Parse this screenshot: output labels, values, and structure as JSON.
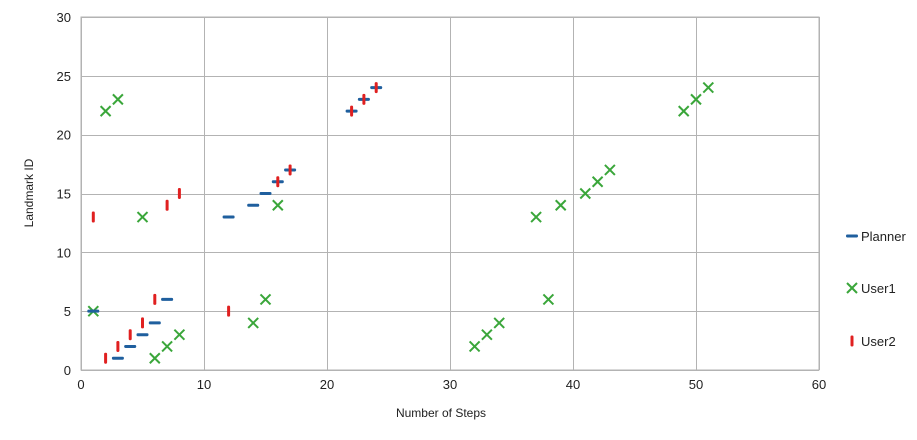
{
  "chart_data": {
    "type": "scatter",
    "title": "",
    "xlabel": "Number of Steps",
    "ylabel": "Landmark ID",
    "xlim": [
      0,
      60
    ],
    "ylim": [
      0,
      30
    ],
    "xticks": [
      0,
      10,
      20,
      30,
      40,
      50,
      60
    ],
    "yticks": [
      0,
      5,
      10,
      15,
      20,
      25,
      30
    ],
    "grid": true,
    "legend_position": "right",
    "series": [
      {
        "name": "Planner",
        "marker": "dash",
        "color": "#1f5f9e",
        "points": [
          [
            1,
            5
          ],
          [
            3,
            1
          ],
          [
            4,
            2
          ],
          [
            5,
            3
          ],
          [
            6,
            4
          ],
          [
            7,
            6
          ],
          [
            12,
            13
          ],
          [
            14,
            14
          ],
          [
            15,
            15
          ],
          [
            16,
            16
          ],
          [
            17,
            17
          ],
          [
            22,
            22
          ],
          [
            23,
            23
          ],
          [
            24,
            24
          ]
        ]
      },
      {
        "name": "User1",
        "marker": "x",
        "color": "#3aa63a",
        "points": [
          [
            1,
            5
          ],
          [
            2,
            22
          ],
          [
            3,
            23
          ],
          [
            5,
            13
          ],
          [
            6,
            1
          ],
          [
            7,
            2
          ],
          [
            8,
            3
          ],
          [
            14,
            4
          ],
          [
            15,
            6
          ],
          [
            16,
            14
          ],
          [
            32,
            2
          ],
          [
            33,
            3
          ],
          [
            34,
            4
          ],
          [
            37,
            13
          ],
          [
            38,
            6
          ],
          [
            39,
            14
          ],
          [
            41,
            15
          ],
          [
            42,
            16
          ],
          [
            43,
            17
          ],
          [
            49,
            22
          ],
          [
            50,
            23
          ],
          [
            51,
            24
          ]
        ]
      },
      {
        "name": "User2",
        "marker": "vbar",
        "color": "#e02020",
        "points": [
          [
            1,
            13
          ],
          [
            2,
            1
          ],
          [
            3,
            2
          ],
          [
            4,
            3
          ],
          [
            5,
            4
          ],
          [
            6,
            6
          ],
          [
            7,
            14
          ],
          [
            8,
            15
          ],
          [
            12,
            5
          ],
          [
            16,
            16
          ],
          [
            17,
            17
          ],
          [
            22,
            22
          ],
          [
            23,
            23
          ],
          [
            24,
            24
          ]
        ]
      }
    ]
  }
}
